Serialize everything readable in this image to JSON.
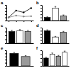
{
  "chart_data": [
    {
      "type": "line",
      "title": "a",
      "x": [
        0,
        1,
        2,
        3
      ],
      "xlim": [
        -0.3,
        3.3
      ],
      "xticks": [
        0,
        1,
        2,
        3
      ],
      "series": [
        {
          "color": "#000000",
          "values": [
            1,
            3.2,
            2.6,
            4
          ],
          "marker": "circle"
        },
        {
          "color": "#888888",
          "values": [
            1,
            1.6,
            1.3,
            1.4
          ],
          "marker": "circle"
        }
      ],
      "ylim": [
        0,
        5
      ],
      "yticks": [
        0,
        1,
        2,
        3,
        4,
        5
      ],
      "tick_labels": false
    },
    {
      "type": "bar",
      "title": "b",
      "categories": [
        null,
        null,
        null
      ],
      "values": [
        1,
        4,
        1.5
      ],
      "errors": [
        0.2,
        0.5,
        0.3
      ],
      "colors": [
        "#000000",
        "#ffffff",
        "#999999"
      ],
      "ylim": [
        0,
        5
      ],
      "yticks": [
        0,
        1,
        2,
        3,
        4,
        5
      ],
      "tick_labels": false
    },
    {
      "type": "bar",
      "title": "c",
      "categories": [
        null,
        null,
        null
      ],
      "values": [
        3,
        3.2,
        3
      ],
      "errors": [
        0.3,
        0.3,
        0.3
      ],
      "colors": [
        "#000000",
        "#ffffff",
        "#999999"
      ],
      "ylim": [
        0,
        4
      ],
      "yticks": [
        0,
        1,
        2,
        3,
        4
      ],
      "tick_labels": false
    },
    {
      "type": "bar",
      "title": "d",
      "categories": [
        null,
        null,
        null
      ],
      "values": [
        4,
        2,
        3.5
      ],
      "errors": [
        0.3,
        0.2,
        0.3
      ],
      "colors": [
        "#000000",
        "#ffffff",
        "#999999"
      ],
      "ylim": [
        0,
        5
      ],
      "yticks": [
        0,
        1,
        2,
        3,
        4,
        5
      ],
      "tick_labels": false
    },
    {
      "type": "bar",
      "title": "e",
      "categories": [
        null,
        null
      ],
      "values": [
        4,
        3
      ],
      "errors": [
        0.3,
        0.3
      ],
      "colors": [
        "#000000",
        "#999999"
      ],
      "ylim": [
        0,
        5
      ],
      "yticks": [
        0,
        1,
        2,
        3,
        4,
        5
      ],
      "tick_labels": false
    },
    {
      "type": "bar",
      "title": "f",
      "categories": [
        null,
        null,
        null,
        null
      ],
      "values": [
        2,
        3,
        2.5,
        3.5
      ],
      "errors": [
        0.2,
        0.3,
        0.2,
        0.3
      ],
      "colors": [
        "#000000",
        "#ffffff",
        "#999999",
        "#ffffff"
      ],
      "ylim": [
        0,
        4
      ],
      "yticks": [
        0,
        1,
        2,
        3,
        4
      ],
      "tick_labels": false
    }
  ]
}
